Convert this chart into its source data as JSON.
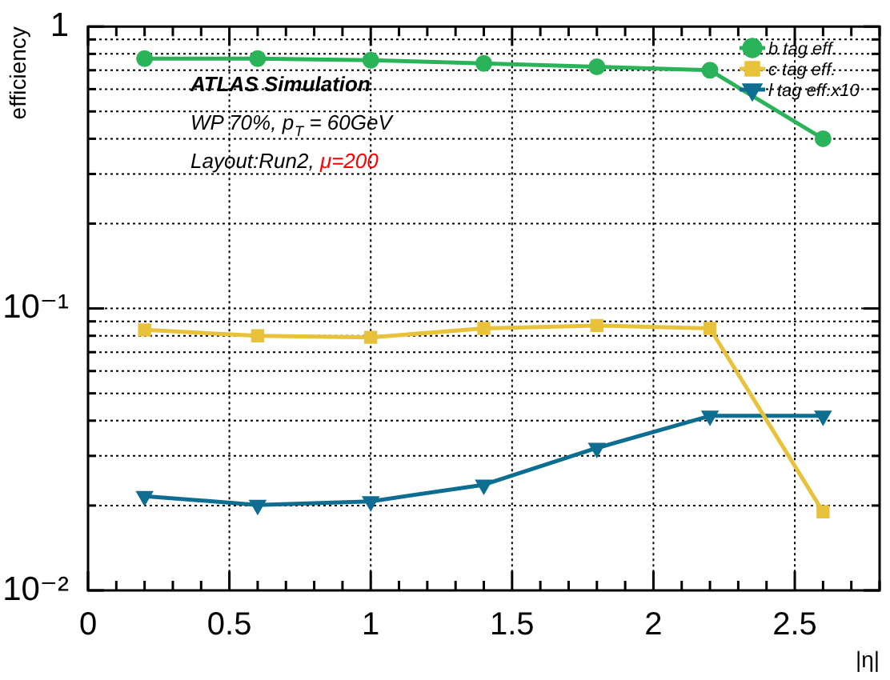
{
  "chart_data": {
    "type": "line",
    "xlabel": "|η|",
    "ylabel": "efficiency",
    "log": "y",
    "grid": true,
    "legend": "top right",
    "marker": "circle",
    "line_style": "solid",
    "annotations": [
      "ATLAS Simulation",
      "WP 70%, p$_{T}$ = 60GeV",
      "Layout:Run2, μ=200"
    ],
    "x": [
      0.2,
      0.6,
      1.0,
      1.4,
      1.8,
      2.2,
      2.6
    ],
    "xlim": [
      0,
      2.8
    ],
    "xticks": [
      0,
      0.5,
      1,
      1.5,
      2,
      2.5
    ],
    "ylim": [
      0.01,
      1
    ],
    "yticks": [
      {
        "value": 0.01,
        "label": "10⁻²"
      },
      {
        "value": 0.1,
        "label": "10⁻¹"
      },
      1
    ],
    "series": [
      {
        "name": "b tag eff.",
        "color": "#2bb35a",
        "marker": "circle",
        "values": [
          0.77,
          0.77,
          0.76,
          0.74,
          0.72,
          0.7,
          0.4
        ]
      },
      {
        "name": "c tag eff.",
        "color": "#e8c23a",
        "marker": "square",
        "values": [
          0.084,
          0.08,
          0.079,
          0.085,
          0.087,
          0.085,
          0.019
        ]
      },
      {
        "name": "l tag eff.x10",
        "color": "#0e6e91",
        "marker": "triangle",
        "values": [
          0.0216,
          0.0201,
          0.0207,
          0.0237,
          0.032,
          0.0416,
          0.0416
        ]
      }
    ]
  }
}
